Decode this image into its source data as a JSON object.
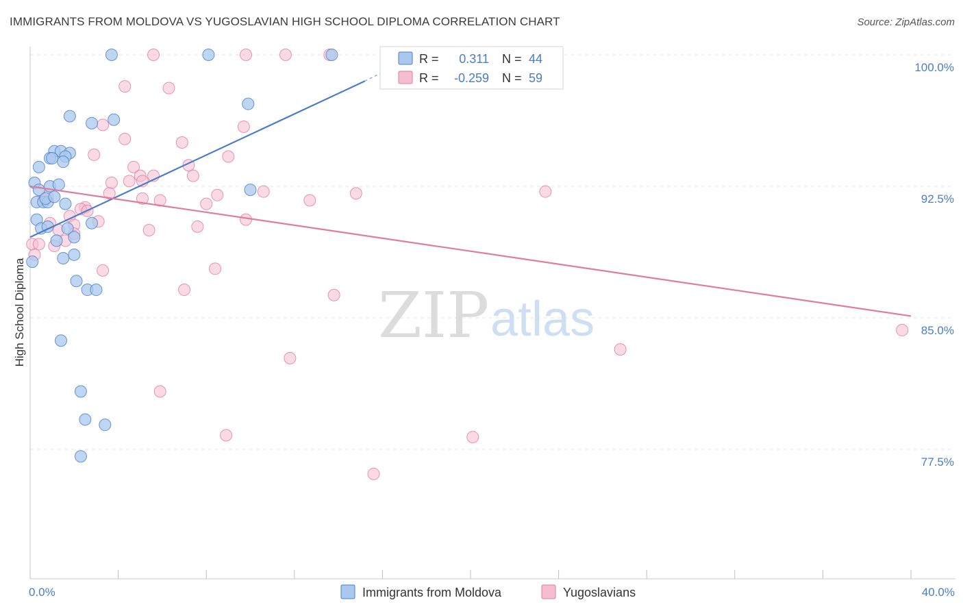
{
  "title": "IMMIGRANTS FROM MOLDOVA VS YUGOSLAVIAN HIGH SCHOOL DIPLOMA CORRELATION CHART",
  "source": "Source: ZipAtlas.com",
  "watermark": {
    "zip": "ZIP",
    "atlas": "atlas"
  },
  "colors": {
    "blue": "#4a7cc7",
    "blue_fill": "#aac8ef",
    "pink": "#e07ba0",
    "pink_fill": "#f5bdd0"
  },
  "chart_data": {
    "type": "scatter",
    "xlabel": "",
    "ylabel": "High School Diploma",
    "xlim": [
      0,
      40
    ],
    "ylim": [
      72.5,
      101
    ],
    "x_tick_labels": [
      {
        "value": 0,
        "label": "0.0%"
      },
      {
        "value": 40,
        "label": "40.0%"
      }
    ],
    "y_tick_labels": [
      {
        "value": 100,
        "label": "100.0%"
      },
      {
        "value": 92.5,
        "label": "92.5%"
      },
      {
        "value": 85,
        "label": "85.0%"
      },
      {
        "value": 77.5,
        "label": "77.5%"
      }
    ],
    "grid": "horizontal-dashed",
    "legend_position": "bottom",
    "stats_box": [
      {
        "r_label": "R =",
        "r_value": "0.311",
        "n_label": "N =",
        "n_value": "44"
      },
      {
        "r_label": "R =",
        "r_value": "-0.259",
        "n_label": "N =",
        "n_value": "59"
      }
    ],
    "series": [
      {
        "name": "Immigrants from Moldova",
        "color": "#4a7cc7",
        "trend": {
          "x": [
            0,
            15.2
          ],
          "y": [
            89.6,
            98.5
          ],
          "dashed_to": [
            16.8,
            99.5
          ]
        },
        "points": [
          [
            3.7,
            100
          ],
          [
            8.1,
            100
          ],
          [
            13.7,
            100
          ],
          [
            9.9,
            97.2
          ],
          [
            1.8,
            96.5
          ],
          [
            2.8,
            96.1
          ],
          [
            3.8,
            96.3
          ],
          [
            1.1,
            94.5
          ],
          [
            1.4,
            94.5
          ],
          [
            1.8,
            94.4
          ],
          [
            0.9,
            94.1
          ],
          [
            1.0,
            94.1
          ],
          [
            1.6,
            94.2
          ],
          [
            1.5,
            93.9
          ],
          [
            0.4,
            93.6
          ],
          [
            0.2,
            92.7
          ],
          [
            0.4,
            92.3
          ],
          [
            0.9,
            92.5
          ],
          [
            1.3,
            92.6
          ],
          [
            10.0,
            92.3
          ],
          [
            0.3,
            91.6
          ],
          [
            0.6,
            91.6
          ],
          [
            0.8,
            91.6
          ],
          [
            0.7,
            91.8
          ],
          [
            1.1,
            91.9
          ],
          [
            1.6,
            91.5
          ],
          [
            0.3,
            90.6
          ],
          [
            0.5,
            90.1
          ],
          [
            0.8,
            90.2
          ],
          [
            1.7,
            90.1
          ],
          [
            2.8,
            90.4
          ],
          [
            1.2,
            89.4
          ],
          [
            2.0,
            89.6
          ],
          [
            1.5,
            88.4
          ],
          [
            2.0,
            88.6
          ],
          [
            0.1,
            88.2
          ],
          [
            2.1,
            87.1
          ],
          [
            2.6,
            86.6
          ],
          [
            3.0,
            86.6
          ],
          [
            1.4,
            83.7
          ],
          [
            2.3,
            80.8
          ],
          [
            2.5,
            79.2
          ],
          [
            3.4,
            78.9
          ],
          [
            2.3,
            77.1
          ]
        ]
      },
      {
        "name": "Yugoslavians",
        "color": "#e07ba0",
        "trend": {
          "x": [
            0,
            40
          ],
          "y": [
            92.5,
            85.1
          ]
        },
        "points": [
          [
            5.6,
            100
          ],
          [
            9.8,
            100
          ],
          [
            11.6,
            100
          ],
          [
            13.6,
            100
          ],
          [
            4.3,
            98.2
          ],
          [
            6.3,
            98.1
          ],
          [
            3.3,
            96
          ],
          [
            9.7,
            95.9
          ],
          [
            4.3,
            95.2
          ],
          [
            6.9,
            95.0
          ],
          [
            2.9,
            94.3
          ],
          [
            9.0,
            94.2
          ],
          [
            4.7,
            93.6
          ],
          [
            7.2,
            93.7
          ],
          [
            5.0,
            93.1
          ],
          [
            5.6,
            93.1
          ],
          [
            7.4,
            93.1
          ],
          [
            3.7,
            92.7
          ],
          [
            4.5,
            92.8
          ],
          [
            5.1,
            92.8
          ],
          [
            3.6,
            92.1
          ],
          [
            8.5,
            92.0
          ],
          [
            10.6,
            92.2
          ],
          [
            14.8,
            92.1
          ],
          [
            23.4,
            92.2
          ],
          [
            0.6,
            91.7
          ],
          [
            0.8,
            91.9
          ],
          [
            5.1,
            91.8
          ],
          [
            5.9,
            91.7
          ],
          [
            8.0,
            91.5
          ],
          [
            12.7,
            91.7
          ],
          [
            2.5,
            91.3
          ],
          [
            2.3,
            91.2
          ],
          [
            2.6,
            91.1
          ],
          [
            1.8,
            90.8
          ],
          [
            3.1,
            90.5
          ],
          [
            9.8,
            90.6
          ],
          [
            2.0,
            90.3
          ],
          [
            5.4,
            90.0
          ],
          [
            7.6,
            90.2
          ],
          [
            0.9,
            90.4
          ],
          [
            1.3,
            90.0
          ],
          [
            2.0,
            89.8
          ],
          [
            0.1,
            89.2
          ],
          [
            1.6,
            89.4
          ],
          [
            3.3,
            87.7
          ],
          [
            8.4,
            87.8
          ],
          [
            7.0,
            86.6
          ],
          [
            13.8,
            86.3
          ],
          [
            39.6,
            84.3
          ],
          [
            26.8,
            83.2
          ],
          [
            11.8,
            82.7
          ],
          [
            5.9,
            80.8
          ],
          [
            8.9,
            78.3
          ],
          [
            20.1,
            78.2
          ],
          [
            15.6,
            76.1
          ],
          [
            0.4,
            89.2
          ],
          [
            0.2,
            88.6
          ],
          [
            1.1,
            89.1
          ]
        ]
      }
    ]
  }
}
